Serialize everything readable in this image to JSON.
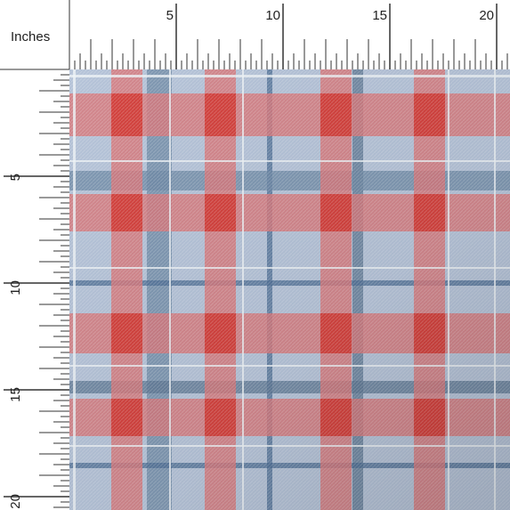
{
  "ruler_unit": "Inches",
  "top_ruler": {
    "labels": [
      5,
      10,
      15,
      20
    ]
  },
  "left_ruler": {
    "labels": [
      5,
      10,
      15,
      20
    ]
  }
}
